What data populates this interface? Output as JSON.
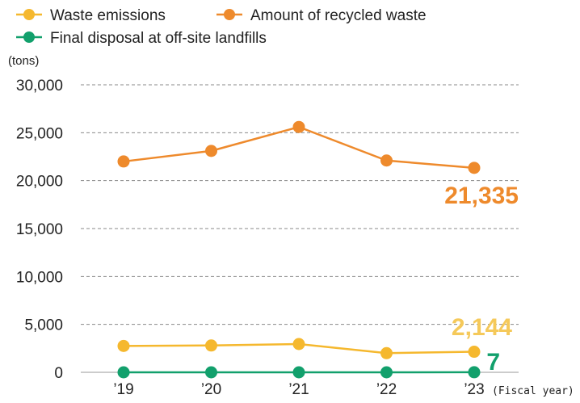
{
  "chart_data": {
    "type": "line",
    "categories": [
      "’19",
      "’20",
      "’21",
      "’22",
      "’23"
    ],
    "series": [
      {
        "name": "Waste emissions",
        "color": "#f5b82e",
        "values": [
          2750,
          2800,
          2950,
          2000,
          2144
        ]
      },
      {
        "name": "Amount of recycled waste",
        "color": "#ee8a2c",
        "values": [
          22000,
          23100,
          25600,
          22100,
          21335
        ]
      },
      {
        "name": "Final disposal at off-site landfills",
        "color": "#12a06c",
        "values": [
          0,
          0,
          0,
          0,
          7
        ]
      }
    ],
    "ylim": [
      0,
      30000
    ],
    "yticks": [
      "0",
      "5,000",
      "10,000",
      "15,000",
      "20,000",
      "25,000",
      "30,000"
    ],
    "ylabel": "(tons)",
    "xlabel": "(Fiscal year)",
    "grid": "horizontal-dashed",
    "legend_position": "top-left",
    "callouts": [
      {
        "series": 1,
        "text": "21,335",
        "color": "#ee8a2c"
      },
      {
        "series": 0,
        "text": "2,144",
        "color": "#f5c95a"
      },
      {
        "series": 2,
        "text": "7",
        "color": "#12a06c"
      }
    ]
  }
}
